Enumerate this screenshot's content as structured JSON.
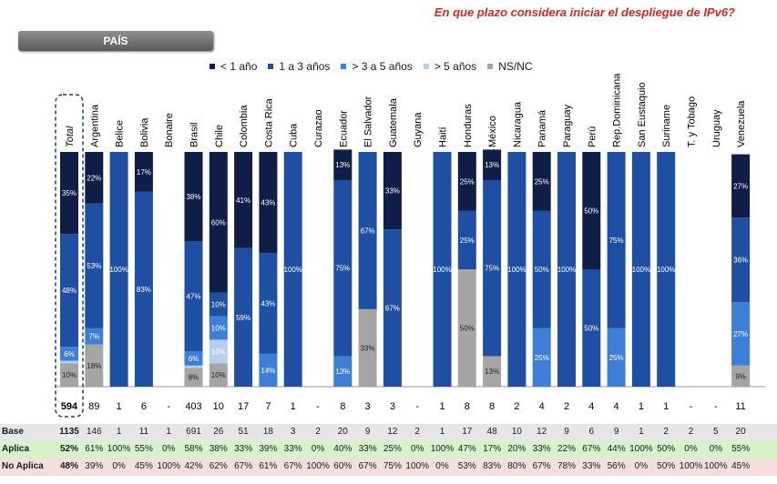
{
  "title": "En que plazo considera iniciar el despliegue de IPv6?",
  "pais_label": "PAÍS",
  "colors": {
    "lt1": "#0f1e47",
    "y1to3": "#1f4fa3",
    "y3to5": "#3d7ed6",
    "gt5": "#b6cff0",
    "nsnc": "#a5a5a5"
  },
  "chart_data": {
    "type": "bar",
    "stacked": true,
    "categories": [
      "Total",
      "Argentina",
      "Belice",
      "Bolivia",
      "Bonaire",
      "Brasil",
      "Chile",
      "Colombia",
      "Costa Rica",
      "Cuba",
      "Curazao",
      "Ecuador",
      "El Salvador",
      "Guatemala",
      "Guyana",
      "Haití",
      "Honduras",
      "México",
      "Nicaragua",
      "Panamá",
      "Paraguay",
      "Perú",
      "Rep.Dominicana",
      "San Eustaquio",
      "Suriname",
      "T. y Tobago",
      "Uruguay",
      "Venezuela"
    ],
    "legend": [
      "< 1 año",
      "1 a 3 años",
      "> 3 a 5 años",
      "> 5 años",
      "NS/NC"
    ],
    "series": [
      {
        "name": "NS/NC",
        "values": [
          10,
          18,
          0,
          0,
          0,
          8,
          10,
          0,
          0,
          0,
          0,
          0,
          33,
          0,
          0,
          0,
          50,
          13,
          0,
          0,
          0,
          0,
          0,
          0,
          0,
          0,
          0,
          9
        ]
      },
      {
        "name": "> 5 años",
        "values": [
          1,
          0,
          0,
          0,
          0,
          1,
          10,
          0,
          0,
          0,
          0,
          0,
          0,
          0,
          0,
          0,
          0,
          0,
          0,
          0,
          0,
          0,
          0,
          0,
          0,
          0,
          0,
          0
        ]
      },
      {
        "name": "> 3 a 5 años",
        "values": [
          6,
          7,
          0,
          0,
          0,
          6,
          10,
          0,
          14,
          0,
          0,
          13,
          0,
          0,
          0,
          0,
          0,
          0,
          0,
          25,
          0,
          0,
          25,
          0,
          0,
          0,
          0,
          27
        ]
      },
      {
        "name": "1 a 3 años",
        "values": [
          48,
          53,
          100,
          83,
          0,
          47,
          10,
          59,
          43,
          100,
          0,
          75,
          67,
          67,
          0,
          100,
          25,
          75,
          100,
          50,
          100,
          50,
          75,
          100,
          100,
          0,
          0,
          36
        ]
      },
      {
        "name": "< 1 año",
        "values": [
          35,
          22,
          0,
          17,
          0,
          38,
          60,
          41,
          43,
          0,
          0,
          13,
          0,
          33,
          0,
          0,
          25,
          13,
          0,
          25,
          0,
          50,
          0,
          0,
          0,
          0,
          0,
          27
        ]
      }
    ],
    "ylim": [
      0,
      100
    ],
    "n": [
      "594",
      "89",
      "1",
      "6",
      "-",
      "403",
      "10",
      "17",
      "7",
      "1",
      "-",
      "8",
      "3",
      "3",
      "-",
      "1",
      "8",
      "8",
      "2",
      "4",
      "2",
      "4",
      "4",
      "1",
      "1",
      "-",
      "-",
      "11"
    ]
  },
  "table": {
    "rows": [
      {
        "label": "Base",
        "values": [
          "1135",
          "146",
          "1",
          "11",
          "1",
          "691",
          "26",
          "51",
          "18",
          "3",
          "2",
          "20",
          "9",
          "12",
          "2",
          "1",
          "17",
          "48",
          "10",
          "12",
          "9",
          "6",
          "9",
          "1",
          "2",
          "2",
          "5",
          "20"
        ]
      },
      {
        "label": "Aplica",
        "values": [
          "52%",
          "61%",
          "100%",
          "55%",
          "0%",
          "58%",
          "38%",
          "33%",
          "39%",
          "33%",
          "0%",
          "40%",
          "33%",
          "25%",
          "0%",
          "100%",
          "47%",
          "17%",
          "20%",
          "33%",
          "22%",
          "67%",
          "44%",
          "100%",
          "50%",
          "0%",
          "0%",
          "55%"
        ]
      },
      {
        "label": "No Aplica",
        "values": [
          "48%",
          "39%",
          "0%",
          "45%",
          "100%",
          "42%",
          "62%",
          "67%",
          "61%",
          "67%",
          "100%",
          "60%",
          "67%",
          "75%",
          "100%",
          "0%",
          "53%",
          "83%",
          "80%",
          "67%",
          "78%",
          "33%",
          "56%",
          "0%",
          "50%",
          "100%",
          "100%",
          "45%"
        ]
      }
    ]
  }
}
